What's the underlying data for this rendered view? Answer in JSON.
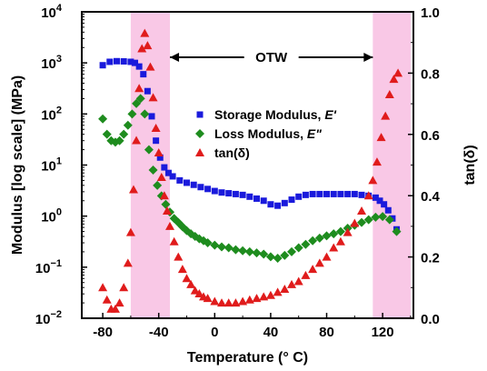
{
  "chart_data": {
    "type": "scatter",
    "xlabel": "Temperature (° C)",
    "ylabel": "Modulus [log scale] (MPa)",
    "y2label": "tan(δ)",
    "xlim": [
      -95,
      142
    ],
    "ylim": [
      0.01,
      10000
    ],
    "yscale": "log",
    "y2lim": [
      0.0,
      1.0
    ],
    "grid": false,
    "legend_position": "center-right",
    "x_ticks": [
      "-80",
      "-40",
      "0",
      "40",
      "80",
      "120"
    ],
    "x_tick_values": [
      -80,
      -40,
      0,
      40,
      80,
      120
    ],
    "y_ticks": [
      {
        "base": "10",
        "exp": "4",
        "value": 10000
      },
      {
        "base": "10",
        "exp": "3",
        "value": 1000
      },
      {
        "base": "10",
        "exp": "2",
        "value": 100
      },
      {
        "base": "10",
        "exp": "1",
        "value": 10
      },
      {
        "base": "10",
        "exp": "0",
        "value": 1
      },
      {
        "base": "10",
        "exp": "−1",
        "value": 0.1
      },
      {
        "base": "10",
        "exp": "−2",
        "value": 0.01
      }
    ],
    "y2_ticks": [
      "0.0",
      "0.2",
      "0.4",
      "0.6",
      "0.8",
      "1.0"
    ],
    "y2_tick_values": [
      0.0,
      0.2,
      0.4,
      0.6,
      0.8,
      1.0
    ],
    "shaded_regions": [
      {
        "x_start": -60,
        "x_end": -32,
        "color": "#f9c8e6"
      },
      {
        "x_start": 113,
        "x_end": 140,
        "color": "#f9c8e6"
      }
    ],
    "annotation": {
      "text": "OTW",
      "x_start": -32,
      "x_end": 113
    },
    "series": [
      {
        "name": "Storage Modulus, ",
        "name_italic": "E'",
        "marker": "square",
        "color": "#1a1adc",
        "axis": "left",
        "x": [
          -80,
          -75,
          -70,
          -65,
          -60,
          -57,
          -54,
          -51,
          -48,
          -45,
          -42,
          -39,
          -36,
          -33,
          -30,
          -25,
          -20,
          -15,
          -10,
          -5,
          0,
          5,
          10,
          15,
          20,
          25,
          30,
          35,
          40,
          45,
          50,
          55,
          60,
          65,
          70,
          75,
          80,
          85,
          90,
          95,
          100,
          105,
          110,
          115,
          118,
          121,
          124,
          127,
          130
        ],
        "y": [
          900,
          1050,
          1080,
          1070,
          1050,
          1000,
          850,
          600,
          280,
          90,
          30,
          14,
          9,
          7,
          6,
          5,
          4.5,
          4.1,
          3.7,
          3.4,
          3.1,
          2.9,
          2.8,
          2.7,
          2.6,
          2.4,
          2.2,
          2.0,
          1.7,
          1.6,
          1.8,
          2.1,
          2.4,
          2.6,
          2.7,
          2.7,
          2.7,
          2.7,
          2.7,
          2.7,
          2.7,
          2.6,
          2.5,
          2.3,
          2.0,
          1.7,
          1.3,
          0.9,
          0.55
        ]
      },
      {
        "name": "Loss Modulus, ",
        "name_italic": "E\"",
        "marker": "diamond",
        "color": "#1e8c1e",
        "axis": "left",
        "x": [
          -80,
          -77,
          -74,
          -71,
          -68,
          -65,
          -62,
          -59,
          -56,
          -53,
          -50,
          -47,
          -44,
          -41,
          -38,
          -35,
          -32,
          -29,
          -26,
          -23,
          -20,
          -17,
          -14,
          -11,
          -8,
          -5,
          0,
          5,
          10,
          15,
          20,
          25,
          30,
          35,
          40,
          45,
          50,
          55,
          60,
          65,
          70,
          75,
          80,
          85,
          90,
          95,
          100,
          105,
          110,
          115,
          120,
          125,
          130
        ],
        "y": [
          80,
          40,
          30,
          28,
          30,
          40,
          60,
          100,
          160,
          200,
          100,
          20,
          8,
          4,
          2.5,
          1.7,
          1.2,
          0.9,
          0.75,
          0.62,
          0.52,
          0.45,
          0.4,
          0.36,
          0.33,
          0.3,
          0.27,
          0.25,
          0.24,
          0.22,
          0.21,
          0.2,
          0.19,
          0.18,
          0.16,
          0.15,
          0.17,
          0.2,
          0.24,
          0.28,
          0.33,
          0.37,
          0.41,
          0.45,
          0.5,
          0.58,
          0.66,
          0.75,
          0.85,
          0.95,
          0.98,
          0.85,
          0.5
        ]
      },
      {
        "name": "tan(δ)",
        "name_italic": "",
        "marker": "triangle",
        "color": "#e01c1c",
        "axis": "right",
        "x": [
          -80,
          -77,
          -74,
          -71,
          -68,
          -65,
          -62,
          -60,
          -58,
          -56,
          -54,
          -52,
          -50,
          -48,
          -46,
          -44,
          -42,
          -40,
          -38,
          -36,
          -34,
          -32,
          -29,
          -26,
          -23,
          -20,
          -17,
          -14,
          -11,
          -8,
          -5,
          0,
          5,
          10,
          15,
          20,
          25,
          30,
          35,
          40,
          45,
          50,
          55,
          60,
          65,
          70,
          75,
          80,
          85,
          90,
          95,
          100,
          105,
          110,
          113,
          116,
          119,
          122,
          125,
          128,
          131
        ],
        "y": [
          0.1,
          0.06,
          0.03,
          0.03,
          0.05,
          0.1,
          0.18,
          0.28,
          0.42,
          0.58,
          0.75,
          0.88,
          0.93,
          0.89,
          0.82,
          0.72,
          0.62,
          0.54,
          0.46,
          0.4,
          0.35,
          0.3,
          0.25,
          0.2,
          0.16,
          0.13,
          0.11,
          0.09,
          0.08,
          0.07,
          0.065,
          0.055,
          0.05,
          0.05,
          0.05,
          0.055,
          0.06,
          0.065,
          0.07,
          0.075,
          0.085,
          0.095,
          0.11,
          0.12,
          0.14,
          0.16,
          0.18,
          0.2,
          0.23,
          0.25,
          0.28,
          0.31,
          0.35,
          0.4,
          0.45,
          0.51,
          0.59,
          0.66,
          0.73,
          0.78,
          0.8
        ]
      }
    ]
  }
}
